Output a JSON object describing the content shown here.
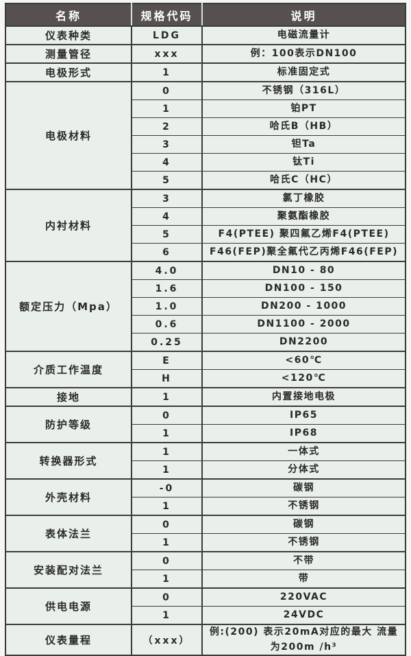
{
  "table": {
    "headers": [
      "名称",
      "规格代码",
      "说明"
    ],
    "colors": {
      "header_bg": "#56514e",
      "header_text": "#ffffff",
      "cell_bg": "#e9efeb",
      "border": "#3b3b39",
      "body_text": "#2a2a28"
    },
    "groups": [
      {
        "name": "仪表种类",
        "rows": [
          {
            "code": "LDG",
            "desc": "电磁流量计"
          }
        ]
      },
      {
        "name": "测量管径",
        "rows": [
          {
            "code": "xxx",
            "desc": "例：100表示DN100"
          }
        ]
      },
      {
        "name": "电极形式",
        "rows": [
          {
            "code": "1",
            "desc": "标准固定式"
          }
        ]
      },
      {
        "name": "电极材料",
        "rows": [
          {
            "code": "0",
            "desc": "不锈钢（316L）"
          },
          {
            "code": "1",
            "desc": "铂PT"
          },
          {
            "code": "2",
            "desc": "哈氏B（HB）"
          },
          {
            "code": "3",
            "desc": "钽Ta"
          },
          {
            "code": "4",
            "desc": "钛Ti"
          },
          {
            "code": "5",
            "desc": "哈氏C（HC）"
          }
        ]
      },
      {
        "name": "内衬材料",
        "rows": [
          {
            "code": "3",
            "desc": "氯丁橡胶"
          },
          {
            "code": "4",
            "desc": "聚氨酯橡胶"
          },
          {
            "code": "5",
            "desc": "F4(PTEE) 聚四氟乙烯F4(PTEE)"
          },
          {
            "code": "6",
            "desc": "F46(FEP)聚全氟代乙丙烯F46(FEP)"
          }
        ]
      },
      {
        "name": "额定压力（Mpa）",
        "rows": [
          {
            "code": "4.0",
            "desc": "DN10 - 80"
          },
          {
            "code": "1.6",
            "desc": "DN100 - 150"
          },
          {
            "code": "1.0",
            "desc": "DN200 - 1000"
          },
          {
            "code": "0.6",
            "desc": "DN1100 - 2000"
          },
          {
            "code": "0.25",
            "desc": "DN2200"
          }
        ]
      },
      {
        "name": "介质工作温度",
        "rows": [
          {
            "code": "E",
            "desc": "<60℃"
          },
          {
            "code": "H",
            "desc": "<120℃"
          }
        ]
      },
      {
        "name": "接地",
        "rows": [
          {
            "code": "1",
            "desc": "内置接地电极"
          }
        ]
      },
      {
        "name": "防护等级",
        "rows": [
          {
            "code": "0",
            "desc": "IP65"
          },
          {
            "code": "1",
            "desc": "IP68"
          }
        ]
      },
      {
        "name": "转换器形式",
        "rows": [
          {
            "code": "1",
            "desc": "一体式"
          },
          {
            "code": "1",
            "desc": "分体式"
          }
        ]
      },
      {
        "name": "外壳材料",
        "rows": [
          {
            "code": "-0",
            "desc": "碳钢"
          },
          {
            "code": "1",
            "desc": "不锈钢"
          }
        ]
      },
      {
        "name": "表体法兰",
        "rows": [
          {
            "code": "0",
            "desc": "碳钢"
          },
          {
            "code": "1",
            "desc": "不锈钢"
          }
        ]
      },
      {
        "name": "安装配对法兰",
        "rows": [
          {
            "code": "0",
            "desc": "不带"
          },
          {
            "code": "1",
            "desc": "带"
          }
        ]
      },
      {
        "name": "供电电源",
        "rows": [
          {
            "code": "0",
            "desc": "220VAC"
          },
          {
            "code": "1",
            "desc": "24VDC"
          }
        ]
      },
      {
        "name": "仪表量程",
        "rows": [
          {
            "code": "（xxx）",
            "desc": "例:(200) 表示20mA对应的最大 流量为200m /h³"
          }
        ]
      }
    ]
  }
}
